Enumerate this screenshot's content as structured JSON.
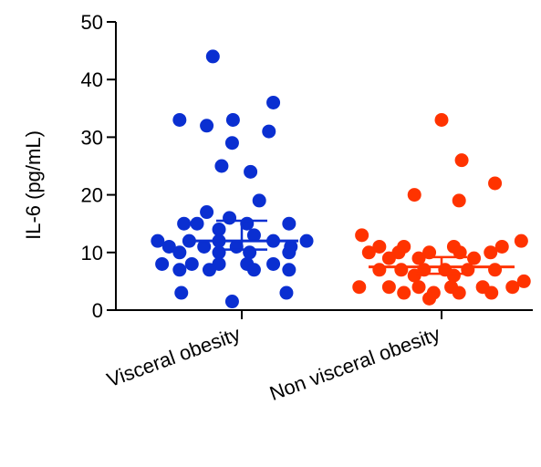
{
  "chart_data": {
    "type": "scatter",
    "ylabel": "IL-6 (pg/mL)",
    "xlabel": "",
    "ylim": [
      0,
      50
    ],
    "yticks": [
      0,
      10,
      20,
      30,
      40,
      50
    ],
    "categories": [
      "Visceral obesity",
      "Non visceral obesity"
    ],
    "series": [
      {
        "name": "Visceral obesity",
        "color": "#0a2fd1",
        "median": 12,
        "error": [
          10.5,
          15.5
        ],
        "points": [
          {
            "x": -0.33,
            "y": 44
          },
          {
            "x": -0.71,
            "y": 33
          },
          {
            "x": -0.4,
            "y": 32
          },
          {
            "x": -0.1,
            "y": 33
          },
          {
            "x": 0.36,
            "y": 36
          },
          {
            "x": -0.11,
            "y": 29
          },
          {
            "x": 0.31,
            "y": 31
          },
          {
            "x": -0.23,
            "y": 25
          },
          {
            "x": 0.1,
            "y": 24
          },
          {
            "x": 0.2,
            "y": 19
          },
          {
            "x": -0.4,
            "y": 17
          },
          {
            "x": -0.14,
            "y": 16
          },
          {
            "x": -0.66,
            "y": 15
          },
          {
            "x": -0.51,
            "y": 15
          },
          {
            "x": 0.06,
            "y": 15
          },
          {
            "x": 0.54,
            "y": 15
          },
          {
            "x": -0.26,
            "y": 14
          },
          {
            "x": 0.14,
            "y": 13
          },
          {
            "x": -0.96,
            "y": 12
          },
          {
            "x": -0.6,
            "y": 12
          },
          {
            "x": -0.26,
            "y": 12
          },
          {
            "x": 0.36,
            "y": 12
          },
          {
            "x": 0.74,
            "y": 12
          },
          {
            "x": -0.83,
            "y": 11
          },
          {
            "x": -0.43,
            "y": 11
          },
          {
            "x": -0.06,
            "y": 11
          },
          {
            "x": 0.56,
            "y": 11
          },
          {
            "x": -0.71,
            "y": 10
          },
          {
            "x": -0.26,
            "y": 10
          },
          {
            "x": 0.09,
            "y": 10
          },
          {
            "x": 0.54,
            "y": 10
          },
          {
            "x": -0.91,
            "y": 8
          },
          {
            "x": -0.57,
            "y": 8
          },
          {
            "x": -0.26,
            "y": 8
          },
          {
            "x": 0.06,
            "y": 8
          },
          {
            "x": 0.36,
            "y": 8
          },
          {
            "x": -0.71,
            "y": 7
          },
          {
            "x": -0.37,
            "y": 7
          },
          {
            "x": 0.14,
            "y": 7
          },
          {
            "x": 0.54,
            "y": 7
          },
          {
            "x": -0.69,
            "y": 3
          },
          {
            "x": 0.51,
            "y": 3
          },
          {
            "x": -0.11,
            "y": 1.5
          }
        ]
      },
      {
        "name": "Non visceral obesity",
        "color": "#ff3300",
        "median": 7.5,
        "error": [
          6.3,
          9.2
        ],
        "points": [
          {
            "x": 0.0,
            "y": 33
          },
          {
            "x": 0.23,
            "y": 26
          },
          {
            "x": -0.31,
            "y": 20
          },
          {
            "x": 0.2,
            "y": 19
          },
          {
            "x": 0.61,
            "y": 22
          },
          {
            "x": -0.91,
            "y": 13
          },
          {
            "x": -0.71,
            "y": 11
          },
          {
            "x": -0.43,
            "y": 11
          },
          {
            "x": 0.14,
            "y": 11
          },
          {
            "x": 0.69,
            "y": 11
          },
          {
            "x": 0.91,
            "y": 12
          },
          {
            "x": -0.83,
            "y": 10
          },
          {
            "x": -0.49,
            "y": 10
          },
          {
            "x": -0.14,
            "y": 10
          },
          {
            "x": 0.21,
            "y": 10
          },
          {
            "x": 0.56,
            "y": 10
          },
          {
            "x": -0.6,
            "y": 9
          },
          {
            "x": -0.26,
            "y": 9
          },
          {
            "x": 0.37,
            "y": 9
          },
          {
            "x": -0.71,
            "y": 7
          },
          {
            "x": -0.46,
            "y": 7
          },
          {
            "x": -0.2,
            "y": 7
          },
          {
            "x": 0.04,
            "y": 7
          },
          {
            "x": 0.3,
            "y": 7
          },
          {
            "x": 0.61,
            "y": 7
          },
          {
            "x": -0.31,
            "y": 6
          },
          {
            "x": 0.14,
            "y": 6
          },
          {
            "x": -0.94,
            "y": 4
          },
          {
            "x": -0.6,
            "y": 4
          },
          {
            "x": -0.26,
            "y": 4
          },
          {
            "x": 0.11,
            "y": 4
          },
          {
            "x": 0.47,
            "y": 4
          },
          {
            "x": 0.81,
            "y": 4
          },
          {
            "x": -0.43,
            "y": 3
          },
          {
            "x": -0.09,
            "y": 3
          },
          {
            "x": 0.2,
            "y": 3
          },
          {
            "x": 0.57,
            "y": 3
          },
          {
            "x": 0.94,
            "y": 5
          },
          {
            "x": -0.14,
            "y": 2
          }
        ]
      }
    ]
  }
}
